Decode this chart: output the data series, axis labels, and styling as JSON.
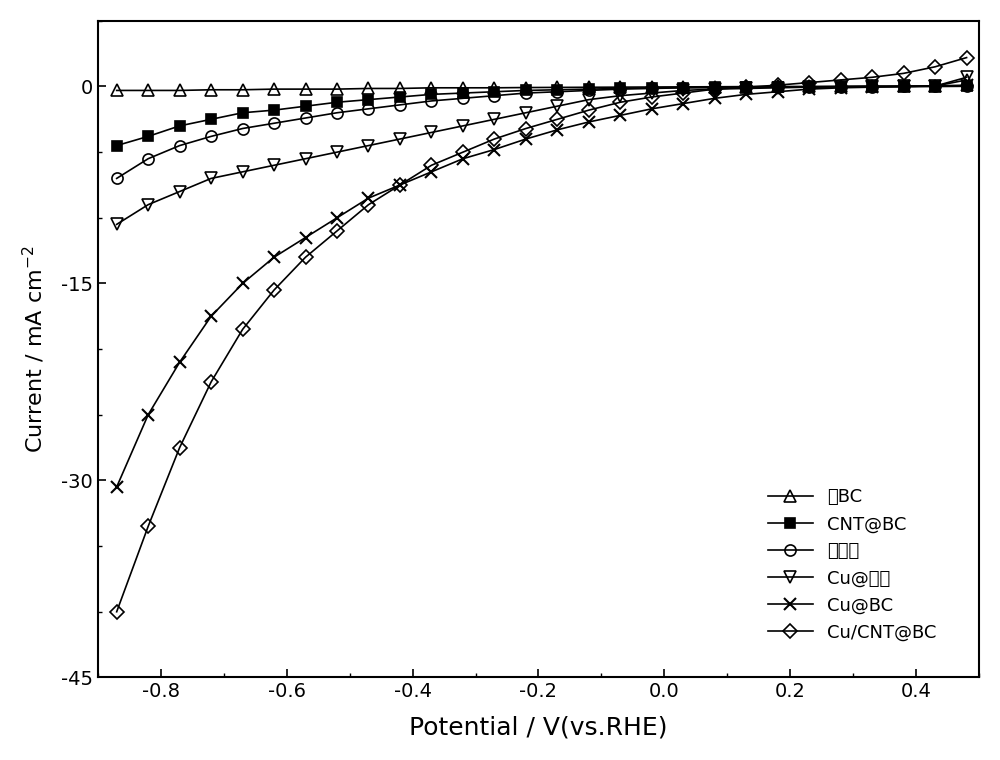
{
  "title": "",
  "xlabel": "Potential / V(vs.RHE)",
  "ylabel": "Current / mA cm⁻²",
  "xlim": [
    -0.9,
    0.5
  ],
  "ylim": [
    -45,
    5
  ],
  "xticks": [
    -0.8,
    -0.6,
    -0.4,
    -0.2,
    0.0,
    0.2,
    0.4
  ],
  "yticks": [
    -45,
    -30,
    -15,
    0
  ],
  "background_color": "#ffffff",
  "line_color": "#000000",
  "series": [
    {
      "label": "绯BC",
      "marker": "^",
      "fillstyle": "none",
      "color": "#000000",
      "x": [
        -0.87,
        -0.82,
        -0.77,
        -0.72,
        -0.67,
        -0.62,
        -0.57,
        -0.52,
        -0.47,
        -0.42,
        -0.37,
        -0.32,
        -0.27,
        -0.22,
        -0.17,
        -0.12,
        -0.07,
        -0.02,
        0.03,
        0.08,
        0.13,
        0.18,
        0.23,
        0.28,
        0.33,
        0.38,
        0.43,
        0.48
      ],
      "y": [
        -0.3,
        -0.3,
        -0.3,
        -0.25,
        -0.25,
        -0.2,
        -0.2,
        -0.2,
        -0.15,
        -0.15,
        -0.1,
        -0.1,
        -0.1,
        -0.08,
        -0.07,
        -0.06,
        -0.05,
        -0.04,
        -0.03,
        -0.02,
        -0.01,
        0.0,
        0.0,
        0.01,
        0.02,
        0.02,
        0.03,
        0.5
      ]
    },
    {
      "label": "CNT@BC",
      "marker": "s",
      "fillstyle": "full",
      "color": "#000000",
      "x": [
        -0.87,
        -0.82,
        -0.77,
        -0.72,
        -0.67,
        -0.62,
        -0.57,
        -0.52,
        -0.47,
        -0.42,
        -0.37,
        -0.32,
        -0.27,
        -0.22,
        -0.17,
        -0.12,
        -0.07,
        -0.02,
        0.03,
        0.08,
        0.13,
        0.18,
        0.23,
        0.28,
        0.33,
        0.38,
        0.43,
        0.48
      ],
      "y": [
        -4.5,
        -3.8,
        -3.0,
        -2.5,
        -2.0,
        -1.8,
        -1.5,
        -1.2,
        -1.0,
        -0.8,
        -0.6,
        -0.5,
        -0.4,
        -0.3,
        -0.25,
        -0.2,
        -0.15,
        -0.1,
        -0.08,
        -0.06,
        -0.04,
        -0.03,
        -0.02,
        -0.01,
        0.0,
        0.0,
        0.01,
        0.02
      ]
    },
    {
      "label": "绯碳布",
      "marker": "o",
      "fillstyle": "none",
      "color": "#000000",
      "x": [
        -0.87,
        -0.82,
        -0.77,
        -0.72,
        -0.67,
        -0.62,
        -0.57,
        -0.52,
        -0.47,
        -0.42,
        -0.37,
        -0.32,
        -0.27,
        -0.22,
        -0.17,
        -0.12,
        -0.07,
        -0.02,
        0.03,
        0.08,
        0.13,
        0.18,
        0.23,
        0.28,
        0.33,
        0.38,
        0.43,
        0.48
      ],
      "y": [
        -7.0,
        -5.5,
        -4.5,
        -3.8,
        -3.2,
        -2.8,
        -2.4,
        -2.0,
        -1.7,
        -1.4,
        -1.1,
        -0.9,
        -0.7,
        -0.5,
        -0.4,
        -0.3,
        -0.2,
        -0.15,
        -0.1,
        -0.08,
        -0.06,
        -0.04,
        -0.03,
        -0.02,
        -0.01,
        0.0,
        0.01,
        0.02
      ]
    },
    {
      "label": "Cu@碳布",
      "marker": "v",
      "fillstyle": "none",
      "color": "#000000",
      "x": [
        -0.87,
        -0.82,
        -0.77,
        -0.72,
        -0.67,
        -0.62,
        -0.57,
        -0.52,
        -0.47,
        -0.42,
        -0.37,
        -0.32,
        -0.27,
        -0.22,
        -0.17,
        -0.12,
        -0.07,
        -0.02,
        0.03,
        0.08,
        0.13,
        0.18,
        0.23,
        0.28,
        0.33,
        0.38,
        0.43,
        0.48
      ],
      "y": [
        -10.5,
        -9.0,
        -8.0,
        -7.0,
        -6.5,
        -6.0,
        -5.5,
        -5.0,
        -4.5,
        -4.0,
        -3.5,
        -3.0,
        -2.5,
        -2.0,
        -1.5,
        -1.0,
        -0.7,
        -0.5,
        -0.3,
        -0.2,
        -0.15,
        -0.1,
        -0.05,
        -0.02,
        0.0,
        0.01,
        0.03,
        0.7
      ]
    },
    {
      "label": "Cu@BC",
      "marker": "x",
      "fillstyle": "full",
      "color": "#000000",
      "x": [
        -0.87,
        -0.82,
        -0.77,
        -0.72,
        -0.67,
        -0.62,
        -0.57,
        -0.52,
        -0.47,
        -0.42,
        -0.37,
        -0.32,
        -0.27,
        -0.22,
        -0.17,
        -0.12,
        -0.07,
        -0.02,
        0.03,
        0.08,
        0.13,
        0.18,
        0.23,
        0.28,
        0.33,
        0.38,
        0.43,
        0.48
      ],
      "y": [
        -30.5,
        -25.0,
        -21.0,
        -17.5,
        -15.0,
        -13.0,
        -11.5,
        -10.0,
        -8.5,
        -7.5,
        -6.5,
        -5.5,
        -4.8,
        -4.0,
        -3.3,
        -2.7,
        -2.2,
        -1.7,
        -1.3,
        -0.9,
        -0.6,
        -0.4,
        -0.2,
        -0.1,
        -0.05,
        0.0,
        0.05,
        0.1
      ]
    },
    {
      "label": "Cu/CNT@BC",
      "marker": "D",
      "fillstyle": "none",
      "color": "#000000",
      "x": [
        -0.87,
        -0.82,
        -0.77,
        -0.72,
        -0.67,
        -0.62,
        -0.57,
        -0.52,
        -0.47,
        -0.42,
        -0.37,
        -0.32,
        -0.27,
        -0.22,
        -0.17,
        -0.12,
        -0.07,
        -0.02,
        0.03,
        0.08,
        0.13,
        0.18,
        0.23,
        0.28,
        0.33,
        0.38,
        0.43,
        0.48
      ],
      "y": [
        -40.0,
        -33.5,
        -27.5,
        -22.5,
        -18.5,
        -15.5,
        -13.0,
        -11.0,
        -9.0,
        -7.5,
        -6.0,
        -5.0,
        -4.0,
        -3.2,
        -2.5,
        -1.8,
        -1.2,
        -0.8,
        -0.5,
        -0.2,
        -0.05,
        0.1,
        0.3,
        0.5,
        0.7,
        1.0,
        1.5,
        2.2
      ]
    }
  ]
}
